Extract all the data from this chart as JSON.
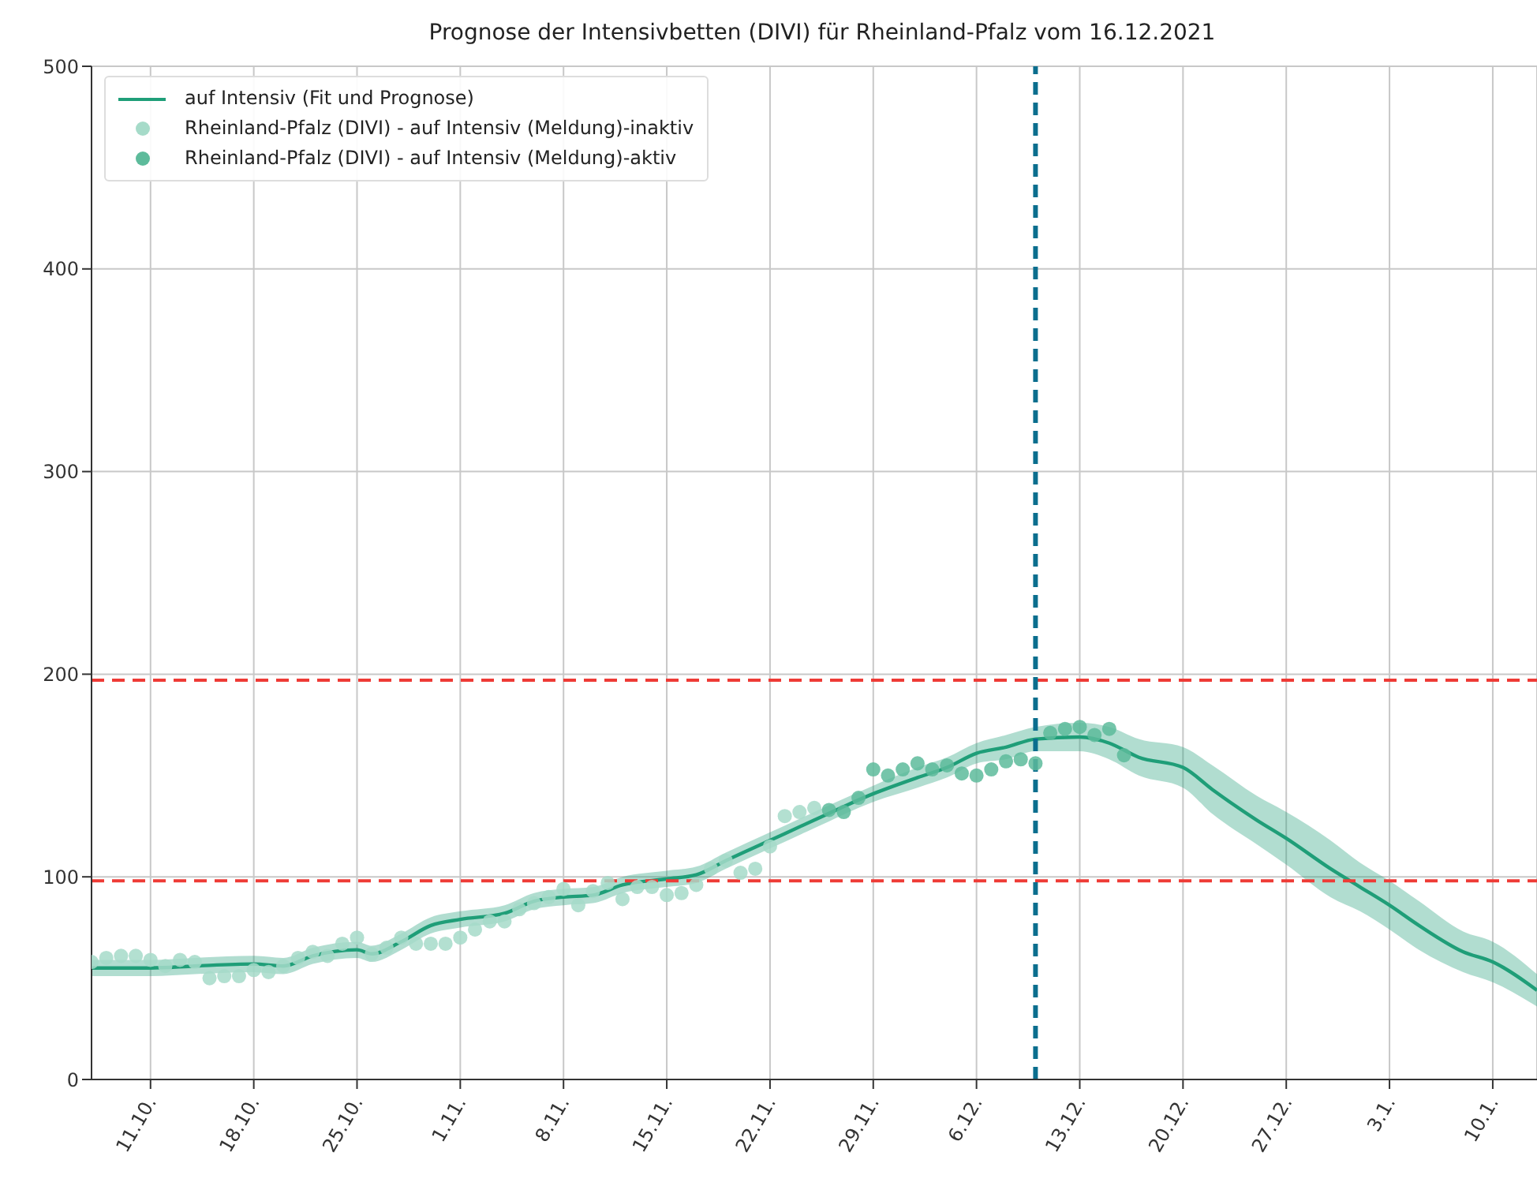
{
  "chart_data": {
    "type": "line",
    "title": "Prognose der Intensivbetten (DIVI) für Rheinland-Pfalz vom 16.12.2021",
    "series": [
      {
        "name": "auf Intensiv (Fit und Prognose)",
        "type": "line",
        "color": "#1f9e78",
        "line_style": "solid",
        "x": [
          "2021-10-07",
          "2021-10-11",
          "2021-10-14",
          "2021-10-18",
          "2021-10-20",
          "2021-10-22",
          "2021-10-25",
          "2021-10-26",
          "2021-10-28",
          "2021-10-30",
          "2021-11-01",
          "2021-11-04",
          "2021-11-06",
          "2021-11-08",
          "2021-11-10",
          "2021-11-12",
          "2021-11-15",
          "2021-11-17",
          "2021-11-19",
          "2021-11-22",
          "2021-11-25",
          "2021-11-29",
          "2021-12-02",
          "2021-12-04",
          "2021-12-06",
          "2021-12-08",
          "2021-12-10",
          "2021-12-13",
          "2021-12-15",
          "2021-12-17",
          "2021-12-20",
          "2021-12-22",
          "2021-12-25",
          "2021-12-27",
          "2021-12-30",
          "2022-01-01",
          "2022-01-03",
          "2022-01-05",
          "2022-01-08",
          "2022-01-10",
          "2022-01-13"
        ],
        "values": [
          55,
          55,
          56,
          57,
          56,
          61,
          64,
          62,
          68,
          76,
          79,
          82,
          88,
          90,
          91,
          96,
          99,
          101,
          108,
          118,
          128,
          141,
          149,
          154,
          161,
          164,
          168,
          169,
          166,
          159,
          154,
          143,
          128,
          119,
          104,
          95,
          86,
          76,
          63,
          58,
          44
        ],
        "lower": [
          51,
          51,
          52,
          53,
          52,
          57,
          60,
          58,
          64,
          72,
          75,
          78,
          84,
          86,
          87,
          92,
          95,
          97,
          104,
          114,
          124,
          137,
          144,
          149,
          156,
          158,
          162,
          162,
          158,
          150,
          144,
          131,
          116,
          106,
          90,
          83,
          74,
          64,
          53,
          48,
          36
        ],
        "upper": [
          59,
          59,
          60,
          61,
          60,
          65,
          68,
          66,
          72,
          80,
          83,
          86,
          92,
          94,
          95,
          100,
          103,
          105,
          112,
          122,
          132,
          145,
          154,
          159,
          166,
          170,
          174,
          176,
          174,
          168,
          164,
          155,
          140,
          132,
          118,
          107,
          98,
          88,
          73,
          68,
          52
        ]
      },
      {
        "name": "Rheinland-Pfalz (DIVI) - auf Intensiv (Meldung)-inaktiv",
        "type": "scatter",
        "marker": "circle",
        "color": "#a6dbc9",
        "x": [
          "2021-10-07",
          "2021-10-08",
          "2021-10-09",
          "2021-10-10",
          "2021-10-11",
          "2021-10-12",
          "2021-10-13",
          "2021-10-14",
          "2021-10-15",
          "2021-10-16",
          "2021-10-17",
          "2021-10-18",
          "2021-10-19",
          "2021-10-20",
          "2021-10-21",
          "2021-10-22",
          "2021-10-23",
          "2021-10-24",
          "2021-10-25",
          "2021-10-26",
          "2021-10-27",
          "2021-10-28",
          "2021-10-29",
          "2021-10-30",
          "2021-10-31",
          "2021-11-01",
          "2021-11-02",
          "2021-11-03",
          "2021-11-04",
          "2021-11-05",
          "2021-11-06",
          "2021-11-07",
          "2021-11-08",
          "2021-11-09",
          "2021-11-10",
          "2021-11-11",
          "2021-11-12",
          "2021-11-13",
          "2021-11-14",
          "2021-11-15",
          "2021-11-16",
          "2021-11-17",
          "2021-11-18",
          "2021-11-19",
          "2021-11-20",
          "2021-11-21",
          "2021-11-22",
          "2021-11-23",
          "2021-11-24",
          "2021-11-25"
        ],
        "values": [
          58,
          60,
          61,
          61,
          59,
          56,
          59,
          58,
          50,
          51,
          51,
          54,
          53,
          56,
          60,
          63,
          61,
          67,
          70,
          62,
          65,
          70,
          67,
          67,
          67,
          70,
          74,
          78,
          78,
          84,
          87,
          90,
          94,
          86,
          93,
          97,
          89,
          95,
          95,
          91,
          92,
          96,
          104,
          108,
          102,
          104,
          115,
          130,
          132,
          134
        ]
      },
      {
        "name": "Rheinland-Pfalz (DIVI) - auf Intensiv (Meldung)-aktiv",
        "type": "scatter",
        "marker": "circle",
        "color": "#5dbb9b",
        "x": [
          "2021-11-26",
          "2021-11-27",
          "2021-11-28",
          "2021-11-29",
          "2021-11-30",
          "2021-12-01",
          "2021-12-02",
          "2021-12-03",
          "2021-12-04",
          "2021-12-05",
          "2021-12-06",
          "2021-12-07",
          "2021-12-08",
          "2021-12-09",
          "2021-12-10",
          "2021-12-11",
          "2021-12-12",
          "2021-12-13",
          "2021-12-14",
          "2021-12-15",
          "2021-12-16"
        ],
        "values": [
          133,
          132,
          139,
          153,
          150,
          153,
          156,
          153,
          155,
          151,
          150,
          153,
          157,
          158,
          156,
          171,
          173,
          174,
          170,
          173,
          160
        ]
      }
    ],
    "xlim": [
      "2021-10-07",
      "2022-01-13"
    ],
    "xticks": [
      {
        "value": "2021-10-11",
        "label": "11.10."
      },
      {
        "value": "2021-10-18",
        "label": "18.10."
      },
      {
        "value": "2021-10-25",
        "label": "25.10."
      },
      {
        "value": "2021-11-01",
        "label": "1.11."
      },
      {
        "value": "2021-11-08",
        "label": "8.11."
      },
      {
        "value": "2021-11-15",
        "label": "15.11."
      },
      {
        "value": "2021-11-22",
        "label": "22.11."
      },
      {
        "value": "2021-11-29",
        "label": "29.11."
      },
      {
        "value": "2021-12-06",
        "label": "6.12."
      },
      {
        "value": "2021-12-13",
        "label": "13.12."
      },
      {
        "value": "2021-12-20",
        "label": "20.12."
      },
      {
        "value": "2021-12-27",
        "label": "27.12."
      },
      {
        "value": "2022-01-03",
        "label": "3.1."
      },
      {
        "value": "2022-01-10",
        "label": "10.1."
      }
    ],
    "ylim": [
      0,
      500
    ],
    "yticks": [
      0,
      100,
      200,
      300,
      400,
      500
    ],
    "ref_lines": [
      {
        "axis": "y",
        "value": 197,
        "color": "#ee3b36",
        "line_style": "dashed"
      },
      {
        "axis": "y",
        "value": 98,
        "color": "#ee3b36",
        "line_style": "dashed"
      },
      {
        "axis": "x",
        "value": "2021-12-10",
        "color": "#0b6e8e",
        "line_style": "dashed"
      }
    ],
    "grid": true,
    "legend": "top left"
  }
}
